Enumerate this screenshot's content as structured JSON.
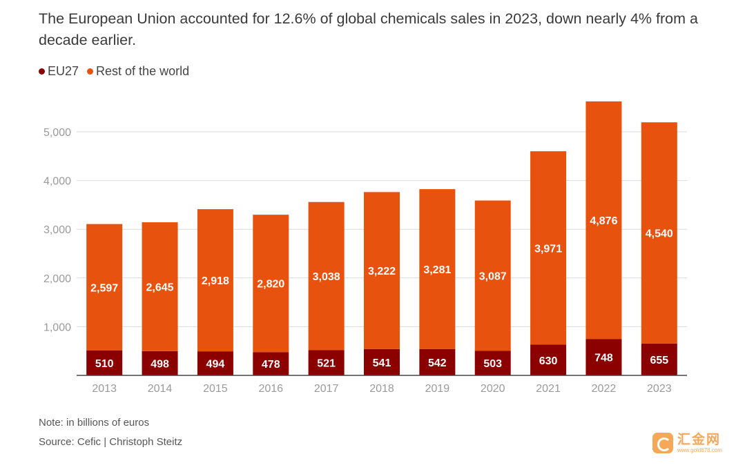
{
  "title": "The European Union accounted for 12.6% of global chemicals sales in 2023, down nearly 4% from a decade earlier.",
  "legend": [
    {
      "label": "EU27",
      "color": "#8b0000"
    },
    {
      "label": "Rest of the world",
      "color": "#e8520f"
    }
  ],
  "note": "Note: in billions of euros",
  "source": "Source: Cefic | Christoph Steitz",
  "watermark": {
    "main": "汇金网",
    "sub": "www.gold678.com"
  },
  "chart_data": {
    "type": "bar",
    "stacked": true,
    "categories": [
      "2013",
      "2014",
      "2015",
      "2016",
      "2017",
      "2018",
      "2019",
      "2020",
      "2021",
      "2022",
      "2023"
    ],
    "series": [
      {
        "name": "EU27",
        "color": "#8b0000",
        "values": [
          510,
          498,
          494,
          478,
          521,
          541,
          542,
          503,
          630,
          748,
          655
        ]
      },
      {
        "name": "Rest of the world",
        "color": "#e8520f",
        "values": [
          2597,
          2645,
          2918,
          2820,
          3038,
          3222,
          3281,
          3087,
          3971,
          4876,
          4540
        ]
      }
    ],
    "yticks": [
      "1,000",
      "2,000",
      "3,000",
      "4,000",
      "5,000"
    ],
    "ytick_values": [
      1000,
      2000,
      3000,
      4000,
      5000
    ],
    "ylim": [
      0,
      5600
    ],
    "grid": true,
    "legend_position": "top-left"
  }
}
